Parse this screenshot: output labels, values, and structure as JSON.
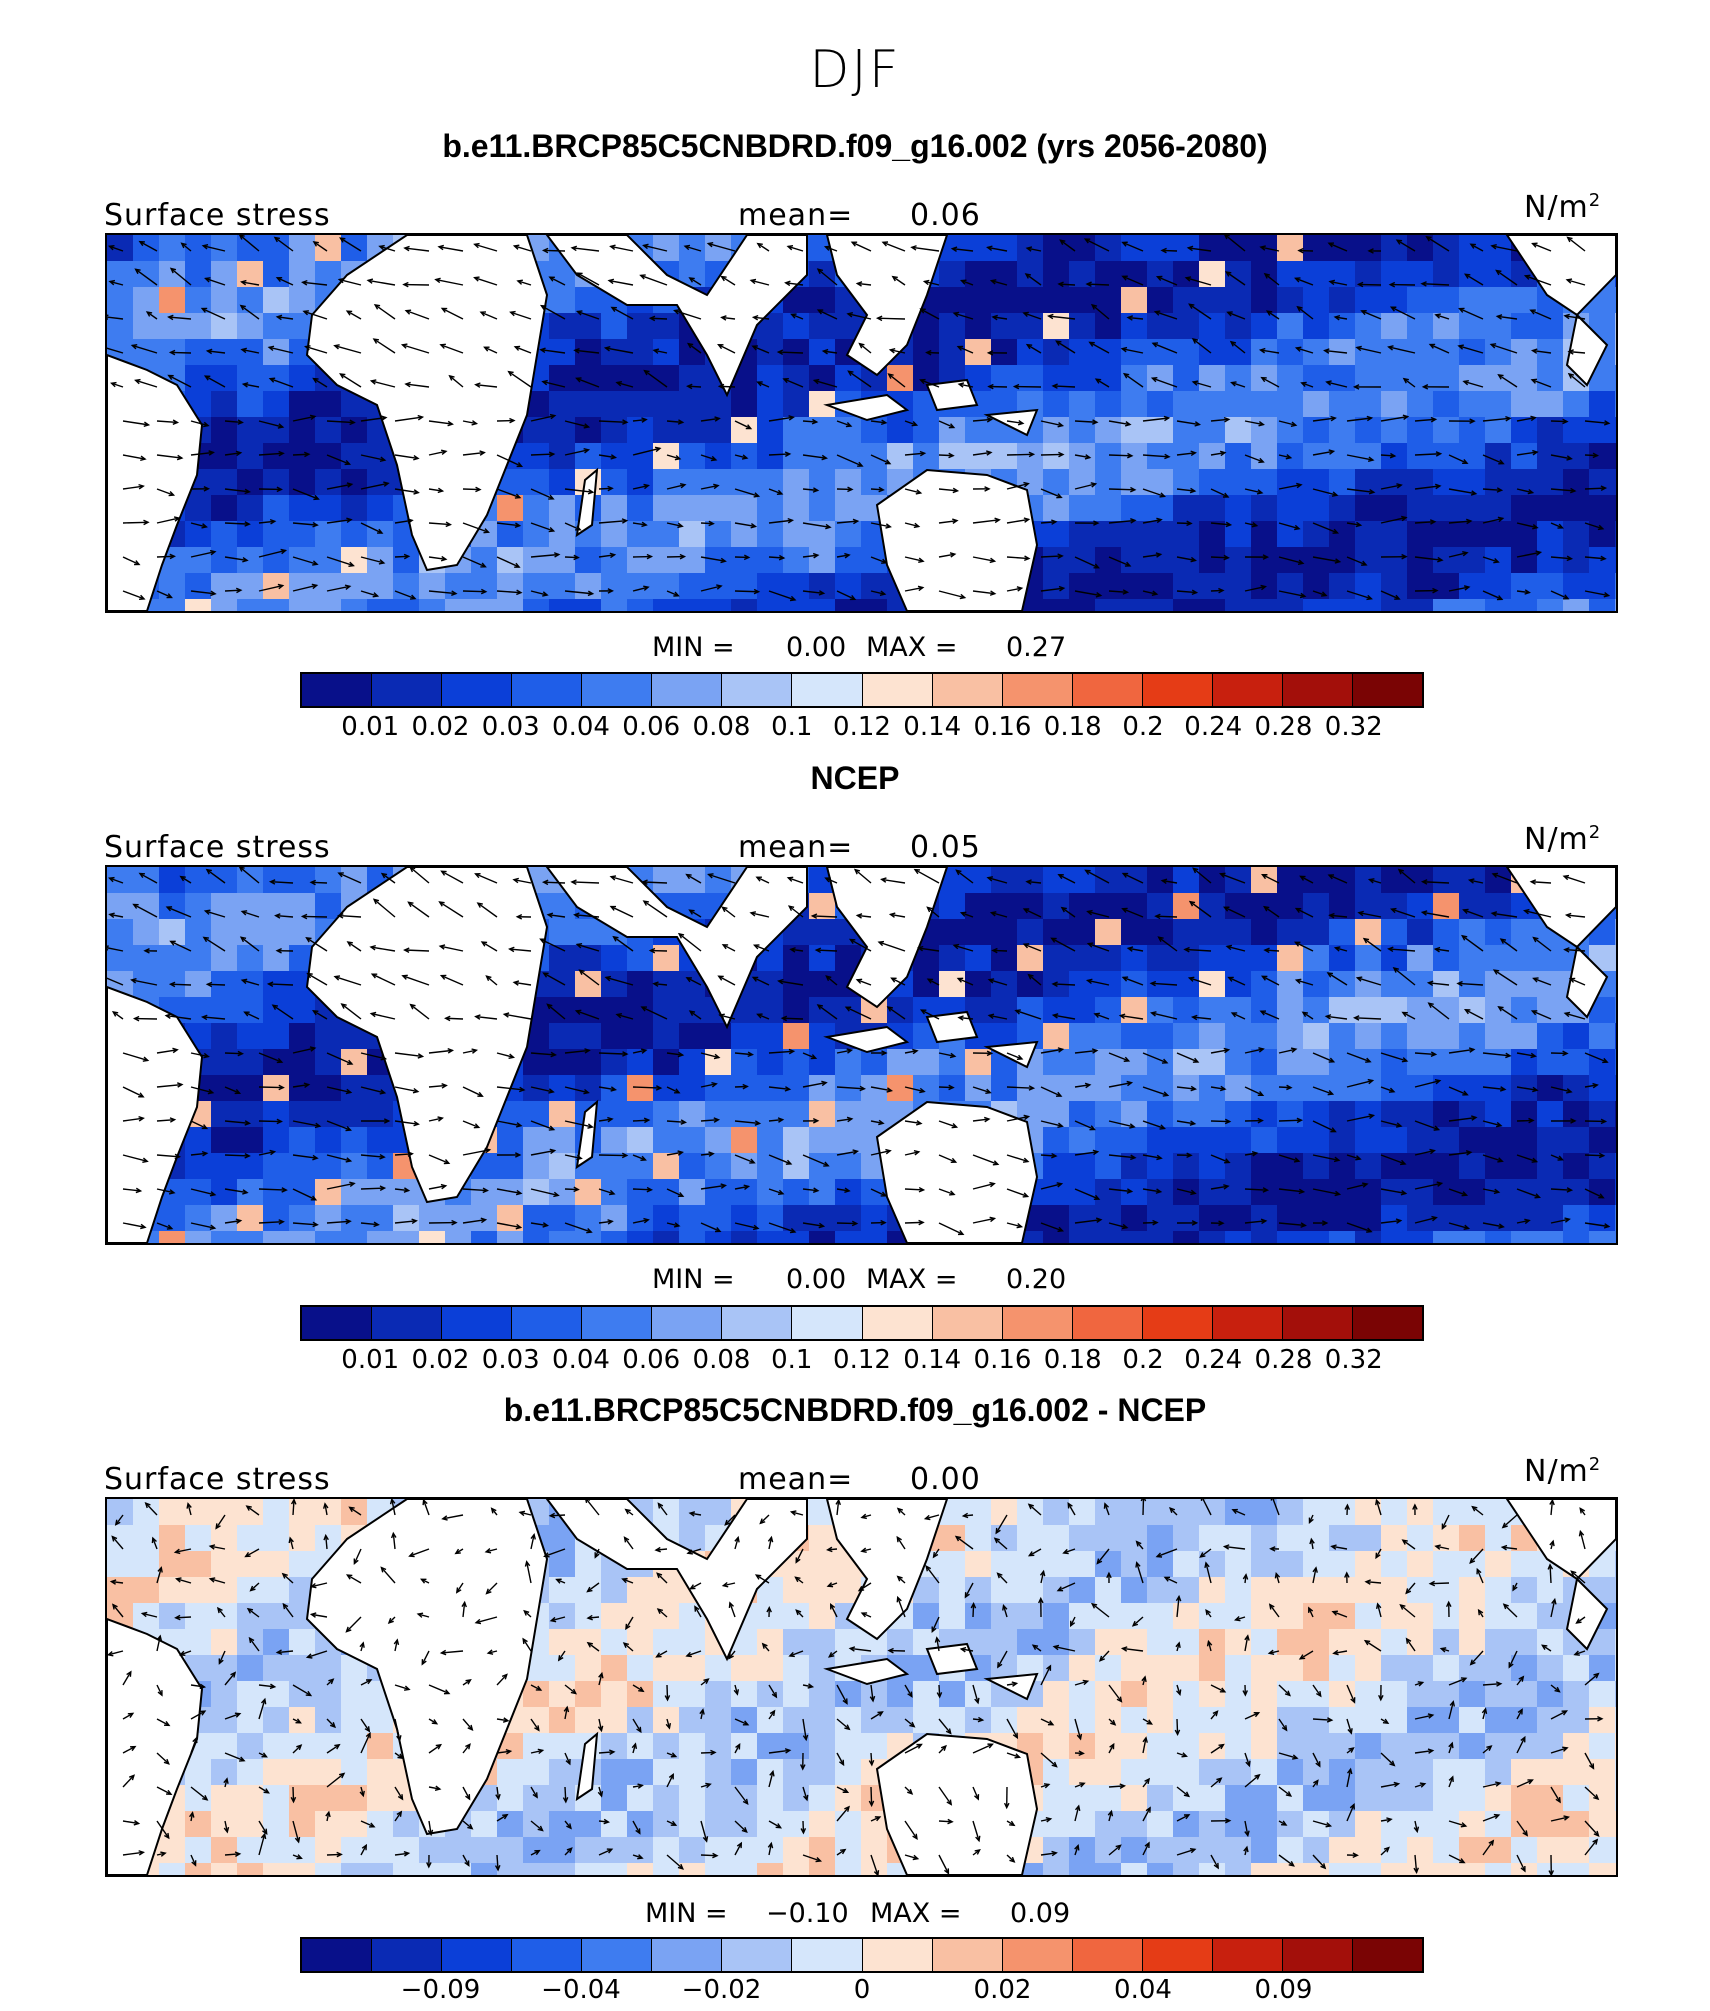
{
  "main_title": "DJF",
  "colors": {
    "palette": [
      "#08108a",
      "#0a2ab4",
      "#0b3fd8",
      "#1f5ee8",
      "#3e7cf0",
      "#7aa3f3",
      "#a9c4f6",
      "#d5e6fb",
      "#fde3d1",
      "#f9c0a3",
      "#f5936d",
      "#f0663f",
      "#e53c16",
      "#c8200e",
      "#a30f0a",
      "#7a0404"
    ],
    "land": "#ffffff",
    "coast": "#000000"
  },
  "panels": [
    {
      "title": "b.e11.BRCP85C5CNBDRD.f09_g16.002 (yrs 2056-2080)",
      "left_label": "Surface stress",
      "mean_label": "mean=",
      "mean_value": "0.06",
      "units": "N/m",
      "units_sup": "2",
      "min_label": "MIN =",
      "min_value": "0.00",
      "max_label": "MAX =",
      "max_value": "0.27",
      "tick_labels": [
        "0.01",
        "0.02",
        "0.03",
        "0.04",
        "0.06",
        "0.08",
        "0.1",
        "0.12",
        "0.14",
        "0.16",
        "0.18",
        "0.2",
        "0.24",
        "0.28",
        "0.32"
      ]
    },
    {
      "title": "NCEP",
      "left_label": "Surface stress",
      "mean_label": "mean=",
      "mean_value": "0.05",
      "units": "N/m",
      "units_sup": "2",
      "min_label": "MIN =",
      "min_value": "0.00",
      "max_label": "MAX =",
      "max_value": "0.20",
      "tick_labels": [
        "0.01",
        "0.02",
        "0.03",
        "0.04",
        "0.06",
        "0.08",
        "0.1",
        "0.12",
        "0.14",
        "0.16",
        "0.18",
        "0.2",
        "0.24",
        "0.28",
        "0.32"
      ]
    },
    {
      "title": "b.e11.BRCP85C5CNBDRD.f09_g16.002 - NCEP",
      "left_label": "Surface stress",
      "mean_label": "mean=",
      "mean_value": "0.00",
      "units": "N/m",
      "units_sup": "2",
      "min_label": "MIN =",
      "min_value": "−0.10",
      "max_label": "MAX =",
      "max_value": "0.09",
      "tick_labels": [
        "−0.09",
        "−0.04",
        "−0.02",
        "0",
        "0.02",
        "0.04",
        "0.09"
      ]
    }
  ]
}
